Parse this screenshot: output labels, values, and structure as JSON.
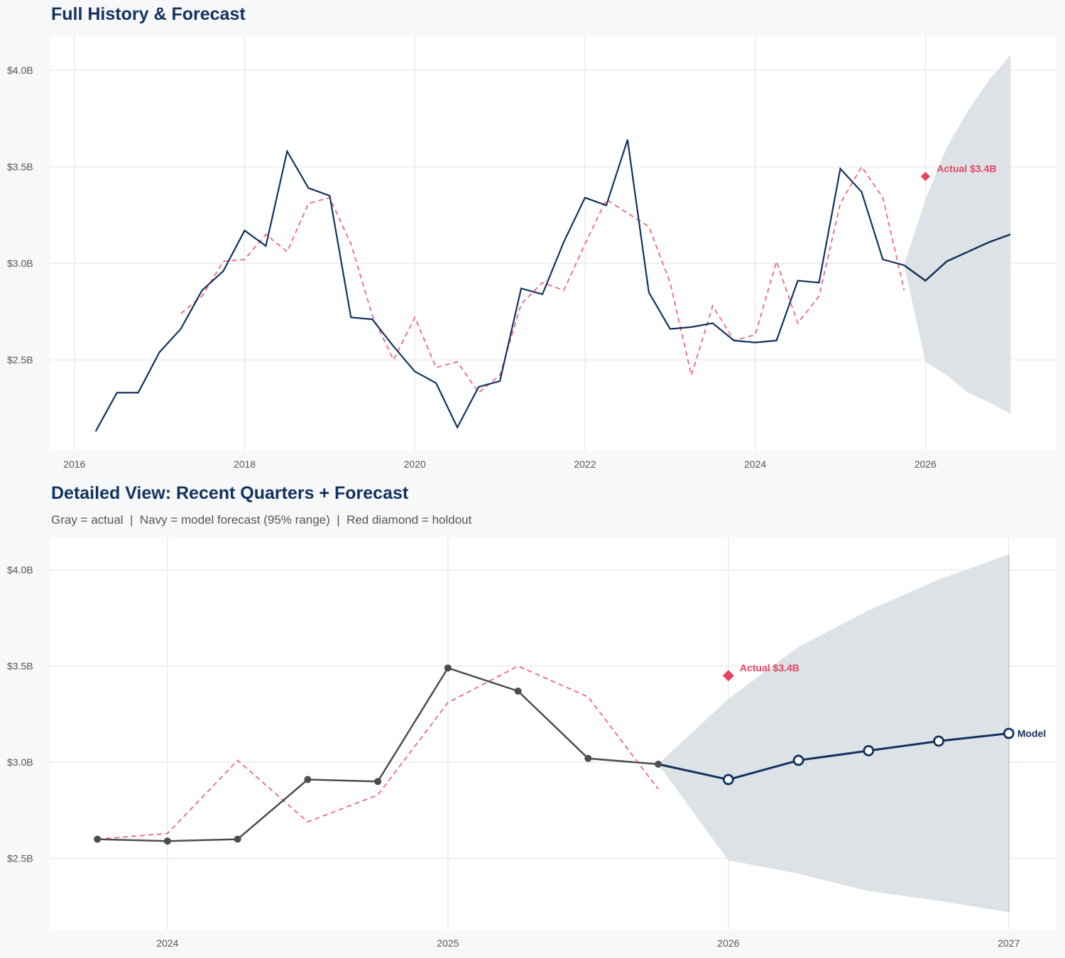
{
  "colors": {
    "background": "#f7f8fa",
    "actual_top": "#12325e",
    "actual_detail": "#4d4d4d",
    "fitted": "#e8435f",
    "forecast": "#12325e",
    "band": "#dbe0e6",
    "holdout": "#e8435f"
  },
  "chart_data": [
    {
      "type": "line",
      "title": "Full History & Forecast",
      "xlabel": "",
      "ylabel": "",
      "xlim": [
        2015.71,
        2027.54
      ],
      "ylim": [
        2.03,
        4.18
      ],
      "grid": true,
      "x_ticks": [
        2016,
        2018,
        2020,
        2022,
        2024,
        2026
      ],
      "x_tick_labels": [
        "2016",
        "2018",
        "2020",
        "2022",
        "2024",
        "2026"
      ],
      "y_ticks": [
        2.5,
        3.0,
        3.5,
        4.0
      ],
      "y_tick_labels": [
        "$2.5B",
        "$3.0B",
        "$3.5B",
        "$4.0B"
      ],
      "actual": {
        "x": [
          2016.25,
          2016.5,
          2016.75,
          2017,
          2017.25,
          2017.5,
          2017.75,
          2018,
          2018.25,
          2018.5,
          2018.75,
          2019,
          2019.25,
          2019.5,
          2019.75,
          2020,
          2020.25,
          2020.5,
          2020.75,
          2021,
          2021.25,
          2021.5,
          2021.75,
          2022,
          2022.25,
          2022.5,
          2022.75,
          2023,
          2023.25,
          2023.5,
          2023.75,
          2024,
          2024.25,
          2024.5,
          2024.75,
          2025,
          2025.25,
          2025.5,
          2025.75
        ],
        "y": [
          2.13,
          2.33,
          2.33,
          2.54,
          2.66,
          2.86,
          2.96,
          3.17,
          3.09,
          3.58,
          3.39,
          3.35,
          2.72,
          2.71,
          2.57,
          2.44,
          2.38,
          2.15,
          2.36,
          2.39,
          2.87,
          2.84,
          3.11,
          3.34,
          3.3,
          3.64,
          2.85,
          2.66,
          2.67,
          2.69,
          2.6,
          2.59,
          2.6,
          2.91,
          2.9,
          3.49,
          3.37,
          3.02,
          2.99
        ]
      },
      "fitted": {
        "x": [
          2017.25,
          2017.5,
          2017.75,
          2018,
          2018.25,
          2018.5,
          2018.75,
          2019,
          2019.25,
          2019.5,
          2019.75,
          2020,
          2020.25,
          2020.5,
          2020.75,
          2021,
          2021.25,
          2021.5,
          2021.75,
          2022,
          2022.25,
          2022.5,
          2022.75,
          2023,
          2023.25,
          2023.5,
          2023.75,
          2024,
          2024.25,
          2024.5,
          2024.75,
          2025,
          2025.25,
          2025.5,
          2025.75
        ],
        "y": [
          2.74,
          2.83,
          3.01,
          3.02,
          3.15,
          3.06,
          3.31,
          3.34,
          3.1,
          2.73,
          2.5,
          2.72,
          2.46,
          2.49,
          2.33,
          2.42,
          2.79,
          2.9,
          2.86,
          3.1,
          3.33,
          3.26,
          3.19,
          2.9,
          2.42,
          2.78,
          2.6,
          2.63,
          3.01,
          2.69,
          2.83,
          3.31,
          3.5,
          3.34,
          2.86
        ]
      },
      "forecast": {
        "x": [
          2025.75,
          2026,
          2026.25,
          2026.5,
          2026.75,
          2027
        ],
        "y": [
          2.99,
          2.91,
          3.01,
          3.06,
          3.11,
          3.15
        ]
      },
      "band": {
        "x": [
          2025.75,
          2026,
          2026.25,
          2026.5,
          2026.75,
          2027
        ],
        "lower": [
          2.99,
          2.49,
          2.42,
          2.33,
          2.28,
          2.22
        ],
        "upper": [
          2.99,
          3.33,
          3.6,
          3.79,
          3.95,
          4.08
        ]
      },
      "holdout": {
        "x": 2026,
        "y": 3.45,
        "label": "Actual $3.4B"
      }
    },
    {
      "type": "line",
      "title": "Detailed View: Recent Quarters + Forecast",
      "subtitle": "Gray = actual  |  Navy = model forecast (95% range)  |  Red diamond = holdout",
      "xlabel": "",
      "ylabel": "",
      "xlim": [
        2023.58,
        2027.17
      ],
      "ylim": [
        2.13,
        4.17
      ],
      "grid": true,
      "x_ticks": [
        2024,
        2025,
        2026,
        2027
      ],
      "x_tick_labels": [
        "2024",
        "2025",
        "2026",
        "2027"
      ],
      "y_ticks": [
        2.5,
        3.0,
        3.5,
        4.0
      ],
      "y_tick_labels": [
        "$2.5B",
        "$3.0B",
        "$3.5B",
        "$4.0B"
      ],
      "actual": {
        "x": [
          2023.75,
          2024,
          2024.25,
          2024.5,
          2024.75,
          2025,
          2025.25,
          2025.5,
          2025.75
        ],
        "y": [
          2.6,
          2.59,
          2.6,
          2.91,
          2.9,
          3.49,
          3.37,
          3.02,
          2.99
        ]
      },
      "fitted": {
        "x": [
          2023.75,
          2024,
          2024.25,
          2024.5,
          2024.75,
          2025,
          2025.25,
          2025.5,
          2025.75
        ],
        "y": [
          2.6,
          2.63,
          3.01,
          2.69,
          2.83,
          3.31,
          3.5,
          3.34,
          2.86
        ]
      },
      "forecast": {
        "x": [
          2025.75,
          2026,
          2026.25,
          2026.5,
          2026.75,
          2027
        ],
        "y": [
          2.99,
          2.91,
          3.01,
          3.06,
          3.11,
          3.15
        ],
        "label": "Model"
      },
      "band": {
        "x": [
          2025.75,
          2026,
          2026.25,
          2026.5,
          2026.75,
          2027
        ],
        "lower": [
          2.99,
          2.49,
          2.42,
          2.33,
          2.28,
          2.22
        ],
        "upper": [
          2.99,
          3.33,
          3.6,
          3.79,
          3.95,
          4.08
        ]
      },
      "holdout": {
        "x": 2026,
        "y": 3.45,
        "label": "Actual $3.4B"
      }
    }
  ]
}
